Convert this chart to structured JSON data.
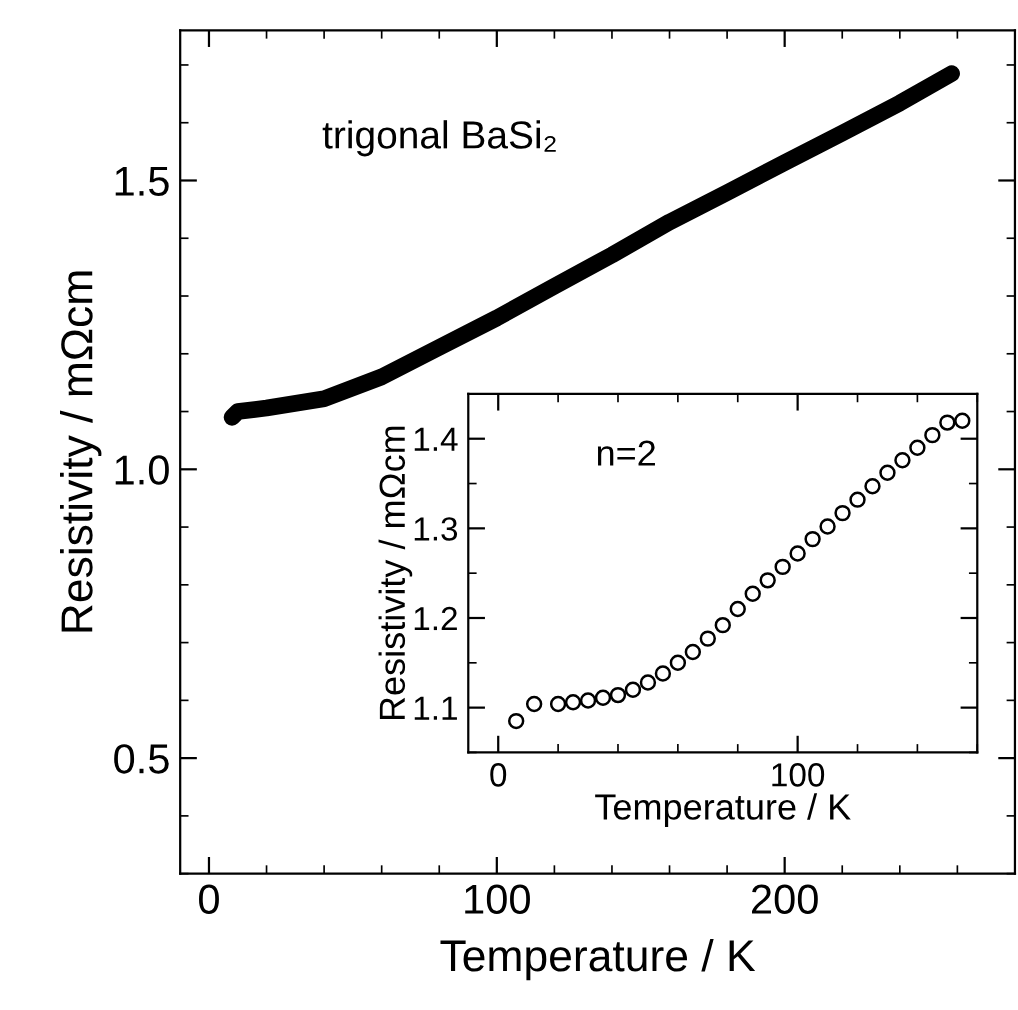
{
  "chart_data": [
    {
      "type": "line",
      "xlabel": "Temperature / K",
      "ylabel": "Resistivity / mΩcm",
      "annotations": [
        "trigonal BaSi₂"
      ],
      "xlim": [
        -10,
        280
      ],
      "ylim": [
        0.3,
        1.76
      ],
      "xticks": [
        0,
        100,
        200
      ],
      "yticks": [
        0.5,
        {
          "value": 1.0,
          "label": "1.0"
        },
        1.5
      ],
      "grid": false,
      "legend": false,
      "marker": "none",
      "line_style": "solid",
      "series": [
        {
          "color": "#000000",
          "x": [
            8,
            10,
            20,
            40,
            60,
            80,
            100,
            120,
            140,
            160,
            180,
            200,
            220,
            240,
            258
          ],
          "values": [
            1.09,
            1.1,
            1.106,
            1.122,
            1.16,
            1.211,
            1.262,
            1.317,
            1.371,
            1.428,
            1.479,
            1.531,
            1.582,
            1.634,
            1.685
          ]
        }
      ]
    },
    {
      "type": "scatter",
      "xlabel": "Temperature / K",
      "ylabel": "Resistivity / mΩcm",
      "annotations": [
        "n=2"
      ],
      "xlim": [
        -10,
        160
      ],
      "ylim": [
        1.05,
        1.45
      ],
      "xticks": [
        0,
        100
      ],
      "yticks": [
        1.1,
        1.2,
        1.3,
        1.4
      ],
      "grid": false,
      "legend": false,
      "marker": "circle",
      "series": [
        {
          "color": "#000000",
          "x": [
            6,
            12,
            20,
            25,
            30,
            35,
            40,
            45,
            50,
            55,
            60,
            65,
            70,
            75,
            80,
            85,
            90,
            95,
            100,
            105,
            110,
            115,
            120,
            125,
            130,
            135,
            140,
            145,
            150,
            155
          ],
          "values": [
            1.085,
            1.104,
            1.104,
            1.106,
            1.108,
            1.111,
            1.114,
            1.12,
            1.128,
            1.138,
            1.15,
            1.162,
            1.177,
            1.192,
            1.21,
            1.227,
            1.242,
            1.257,
            1.272,
            1.288,
            1.302,
            1.317,
            1.332,
            1.347,
            1.362,
            1.376,
            1.39,
            1.404,
            1.418,
            1.42
          ]
        }
      ]
    }
  ]
}
